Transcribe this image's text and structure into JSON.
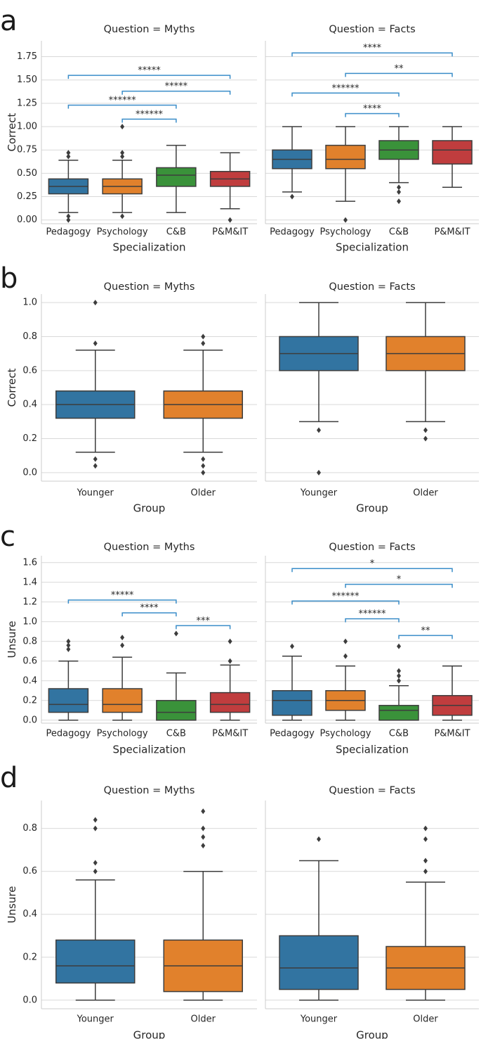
{
  "colors": {
    "blue": "#3274a1",
    "orange": "#e1812c",
    "green": "#3a923a",
    "red": "#c03d3e",
    "grid": "#d9d9d9",
    "axis": "#cccccc",
    "line": "#3d3d3d",
    "bracket": "#3a8dc9"
  },
  "chart_data": [
    {
      "label": "a",
      "type": "box",
      "ylabel": "Correct",
      "xlabel": "Specialization",
      "categories": [
        "Pedagogy",
        "Psychology",
        "C&B",
        "P&M&IT"
      ],
      "ylim": [
        -0.04,
        1.92
      ],
      "yticks": [
        "0.00",
        "0.25",
        "0.50",
        "0.75",
        "1.00",
        "1.25",
        "1.50",
        "1.75"
      ],
      "facets": [
        {
          "title": "Question = Myths",
          "boxes": [
            {
              "q1": 0.28,
              "med": 0.36,
              "q3": 0.44,
              "lo": 0.08,
              "hi": 0.64,
              "out": [
                0.0,
                0.04,
                0.68,
                0.72
              ]
            },
            {
              "q1": 0.28,
              "med": 0.36,
              "q3": 0.44,
              "lo": 0.08,
              "hi": 0.64,
              "out": [
                0.04,
                0.68,
                0.72,
                1.0
              ]
            },
            {
              "q1": 0.36,
              "med": 0.48,
              "q3": 0.56,
              "lo": 0.08,
              "hi": 0.8,
              "out": []
            },
            {
              "q1": 0.36,
              "med": 0.44,
              "q3": 0.52,
              "lo": 0.12,
              "hi": 0.72,
              "out": [
                0.0
              ]
            }
          ],
          "brackets": [
            {
              "from": 0,
              "to": 3,
              "y": 1.55,
              "label": "*****"
            },
            {
              "from": 1,
              "to": 3,
              "y": 1.38,
              "label": "*****"
            },
            {
              "from": 0,
              "to": 2,
              "y": 1.23,
              "label": "******"
            },
            {
              "from": 1,
              "to": 2,
              "y": 1.08,
              "label": "******"
            }
          ]
        },
        {
          "title": "Question = Facts",
          "boxes": [
            {
              "q1": 0.55,
              "med": 0.65,
              "q3": 0.75,
              "lo": 0.3,
              "hi": 1.0,
              "out": [
                0.25
              ]
            },
            {
              "q1": 0.55,
              "med": 0.65,
              "q3": 0.8,
              "lo": 0.2,
              "hi": 1.0,
              "out": [
                0.0
              ]
            },
            {
              "q1": 0.65,
              "med": 0.75,
              "q3": 0.85,
              "lo": 0.4,
              "hi": 1.0,
              "out": [
                0.2,
                0.3,
                0.35
              ]
            },
            {
              "q1": 0.6,
              "med": 0.75,
              "q3": 0.85,
              "lo": 0.35,
              "hi": 1.0,
              "out": []
            }
          ],
          "brackets": [
            {
              "from": 0,
              "to": 3,
              "y": 1.79,
              "label": "****"
            },
            {
              "from": 1,
              "to": 3,
              "y": 1.57,
              "label": "**"
            },
            {
              "from": 0,
              "to": 2,
              "y": 1.36,
              "label": "******"
            },
            {
              "from": 1,
              "to": 2,
              "y": 1.14,
              "label": "****"
            }
          ]
        }
      ]
    },
    {
      "label": "b",
      "type": "box",
      "ylabel": "Correct",
      "xlabel": "Group",
      "categories": [
        "Younger",
        "Older"
      ],
      "ylim": [
        -0.05,
        1.05
      ],
      "yticks": [
        "0.0",
        "0.2",
        "0.4",
        "0.6",
        "0.8",
        "1.0"
      ],
      "facets": [
        {
          "title": "Question = Myths",
          "boxes": [
            {
              "q1": 0.32,
              "med": 0.4,
              "q3": 0.48,
              "lo": 0.12,
              "hi": 0.72,
              "out": [
                0.04,
                0.08,
                0.76,
                1.0
              ]
            },
            {
              "q1": 0.32,
              "med": 0.4,
              "q3": 0.48,
              "lo": 0.12,
              "hi": 0.72,
              "out": [
                0.0,
                0.04,
                0.08,
                0.76,
                0.8
              ]
            }
          ],
          "brackets": []
        },
        {
          "title": "Question = Facts",
          "boxes": [
            {
              "q1": 0.6,
              "med": 0.7,
              "q3": 0.8,
              "lo": 0.3,
              "hi": 1.0,
              "out": [
                0.0,
                0.25
              ]
            },
            {
              "q1": 0.6,
              "med": 0.7,
              "q3": 0.8,
              "lo": 0.3,
              "hi": 1.0,
              "out": [
                0.2,
                0.25
              ]
            }
          ],
          "brackets": []
        }
      ]
    },
    {
      "label": "c",
      "type": "box",
      "ylabel": "Unsure",
      "xlabel": "Specialization",
      "categories": [
        "Pedagogy",
        "Psychology",
        "C&B",
        "P&M&IT"
      ],
      "ylim": [
        -0.03,
        1.67
      ],
      "yticks": [
        "0.0",
        "0.2",
        "0.4",
        "0.6",
        "0.8",
        "1.0",
        "1.2",
        "1.4",
        "1.6"
      ],
      "facets": [
        {
          "title": "Question = Myths",
          "boxes": [
            {
              "q1": 0.08,
              "med": 0.16,
              "q3": 0.32,
              "lo": 0.0,
              "hi": 0.6,
              "out": [
                0.72,
                0.76,
                0.8
              ]
            },
            {
              "q1": 0.08,
              "med": 0.16,
              "q3": 0.32,
              "lo": 0.0,
              "hi": 0.64,
              "out": [
                0.76,
                0.84
              ]
            },
            {
              "q1": 0.0,
              "med": 0.08,
              "q3": 0.2,
              "lo": 0.0,
              "hi": 0.48,
              "out": [
                0.88
              ]
            },
            {
              "q1": 0.08,
              "med": 0.16,
              "q3": 0.28,
              "lo": 0.0,
              "hi": 0.56,
              "out": [
                0.6,
                0.8
              ]
            }
          ],
          "brackets": [
            {
              "from": 0,
              "to": 2,
              "y": 1.22,
              "label": "*****"
            },
            {
              "from": 1,
              "to": 2,
              "y": 1.09,
              "label": "****"
            },
            {
              "from": 2,
              "to": 3,
              "y": 0.96,
              "label": "***"
            }
          ]
        },
        {
          "title": "Question = Facts",
          "boxes": [
            {
              "q1": 0.05,
              "med": 0.2,
              "q3": 0.3,
              "lo": 0.0,
              "hi": 0.65,
              "out": [
                0.75
              ]
            },
            {
              "q1": 0.1,
              "med": 0.2,
              "q3": 0.3,
              "lo": 0.0,
              "hi": 0.55,
              "out": [
                0.65,
                0.8
              ]
            },
            {
              "q1": 0.0,
              "med": 0.1,
              "q3": 0.15,
              "lo": 0.0,
              "hi": 0.35,
              "out": [
                0.4,
                0.45,
                0.5,
                0.75
              ]
            },
            {
              "q1": 0.05,
              "med": 0.15,
              "q3": 0.25,
              "lo": 0.0,
              "hi": 0.55,
              "out": []
            }
          ],
          "brackets": [
            {
              "from": 0,
              "to": 3,
              "y": 1.54,
              "label": "*"
            },
            {
              "from": 1,
              "to": 3,
              "y": 1.38,
              "label": "*"
            },
            {
              "from": 0,
              "to": 2,
              "y": 1.21,
              "label": "******"
            },
            {
              "from": 1,
              "to": 2,
              "y": 1.03,
              "label": "******"
            },
            {
              "from": 2,
              "to": 3,
              "y": 0.86,
              "label": "**"
            }
          ]
        }
      ]
    },
    {
      "label": "d",
      "type": "box",
      "ylabel": "Unsure",
      "xlabel": "Group",
      "categories": [
        "Younger",
        "Older"
      ],
      "ylim": [
        -0.04,
        0.93
      ],
      "yticks": [
        "0.0",
        "0.2",
        "0.4",
        "0.6",
        "0.8"
      ],
      "facets": [
        {
          "title": "Question = Myths",
          "boxes": [
            {
              "q1": 0.08,
              "med": 0.16,
              "q3": 0.28,
              "lo": 0.0,
              "hi": 0.56,
              "out": [
                0.6,
                0.64,
                0.8,
                0.84
              ]
            },
            {
              "q1": 0.04,
              "med": 0.16,
              "q3": 0.28,
              "lo": 0.0,
              "hi": 0.6,
              "out": [
                0.72,
                0.76,
                0.8,
                0.88
              ]
            }
          ],
          "brackets": []
        },
        {
          "title": "Question = Facts",
          "boxes": [
            {
              "q1": 0.05,
              "med": 0.15,
              "q3": 0.3,
              "lo": 0.0,
              "hi": 0.65,
              "out": [
                0.75
              ]
            },
            {
              "q1": 0.05,
              "med": 0.15,
              "q3": 0.25,
              "lo": 0.0,
              "hi": 0.55,
              "out": [
                0.6,
                0.65,
                0.75,
                0.8
              ]
            }
          ],
          "brackets": []
        }
      ]
    }
  ]
}
